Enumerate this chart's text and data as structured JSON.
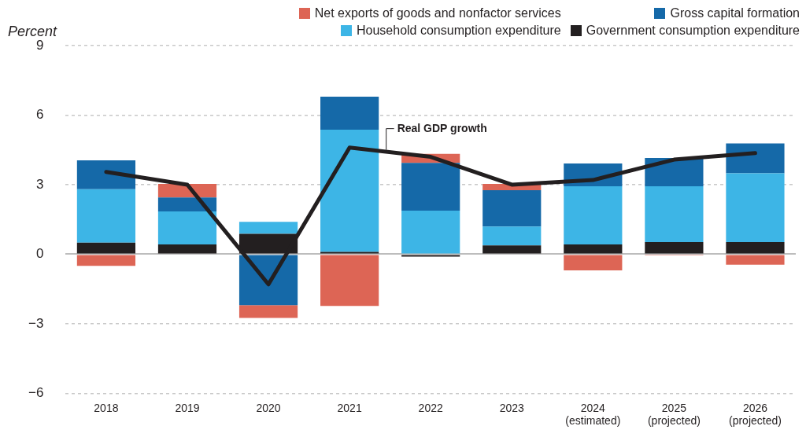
{
  "chart_data": {
    "type": "bar",
    "ylabel": "Percent",
    "stacked": true,
    "grid": "y",
    "legend": "top right",
    "categories": [
      "2018",
      "2019",
      "2020",
      "2021",
      "2022",
      "2023",
      "2024 (estimated)",
      "2025 (projected)",
      "2026 (projected)"
    ],
    "ylim": [
      -6,
      9
    ],
    "yticks": [
      -6,
      -3,
      0,
      3,
      6,
      9
    ],
    "series": [
      {
        "name": "Government consumption expenditure",
        "color": "#231f20",
        "values": [
          0.5,
          0.42,
          0.88,
          0.1,
          -0.1,
          0.38,
          0.42,
          0.52,
          0.52
        ]
      },
      {
        "name": "Household consumption expenditure",
        "color": "#3db5e6",
        "values": [
          2.3,
          1.43,
          0.52,
          5.27,
          1.88,
          0.81,
          2.51,
          2.41,
          2.97
        ]
      },
      {
        "name": "Gross capital formation",
        "color": "#1569a8",
        "values": [
          1.25,
          0.6,
          -2.2,
          1.43,
          2.06,
          1.57,
          0.98,
          1.22,
          1.29
        ]
      },
      {
        "name": "Net exports of goods and nonfactor services",
        "color": "#dd6555",
        "values": [
          -0.5,
          0.58,
          -0.55,
          -2.23,
          0.39,
          0.27,
          -0.7,
          -0.05,
          -0.45
        ]
      },
      {
        "name": "Real GDP growth",
        "type": "line",
        "color": "#231f20",
        "values": [
          3.55,
          3.0,
          -1.3,
          4.6,
          4.2,
          3.0,
          3.2,
          4.08,
          4.36
        ]
      }
    ]
  }
}
